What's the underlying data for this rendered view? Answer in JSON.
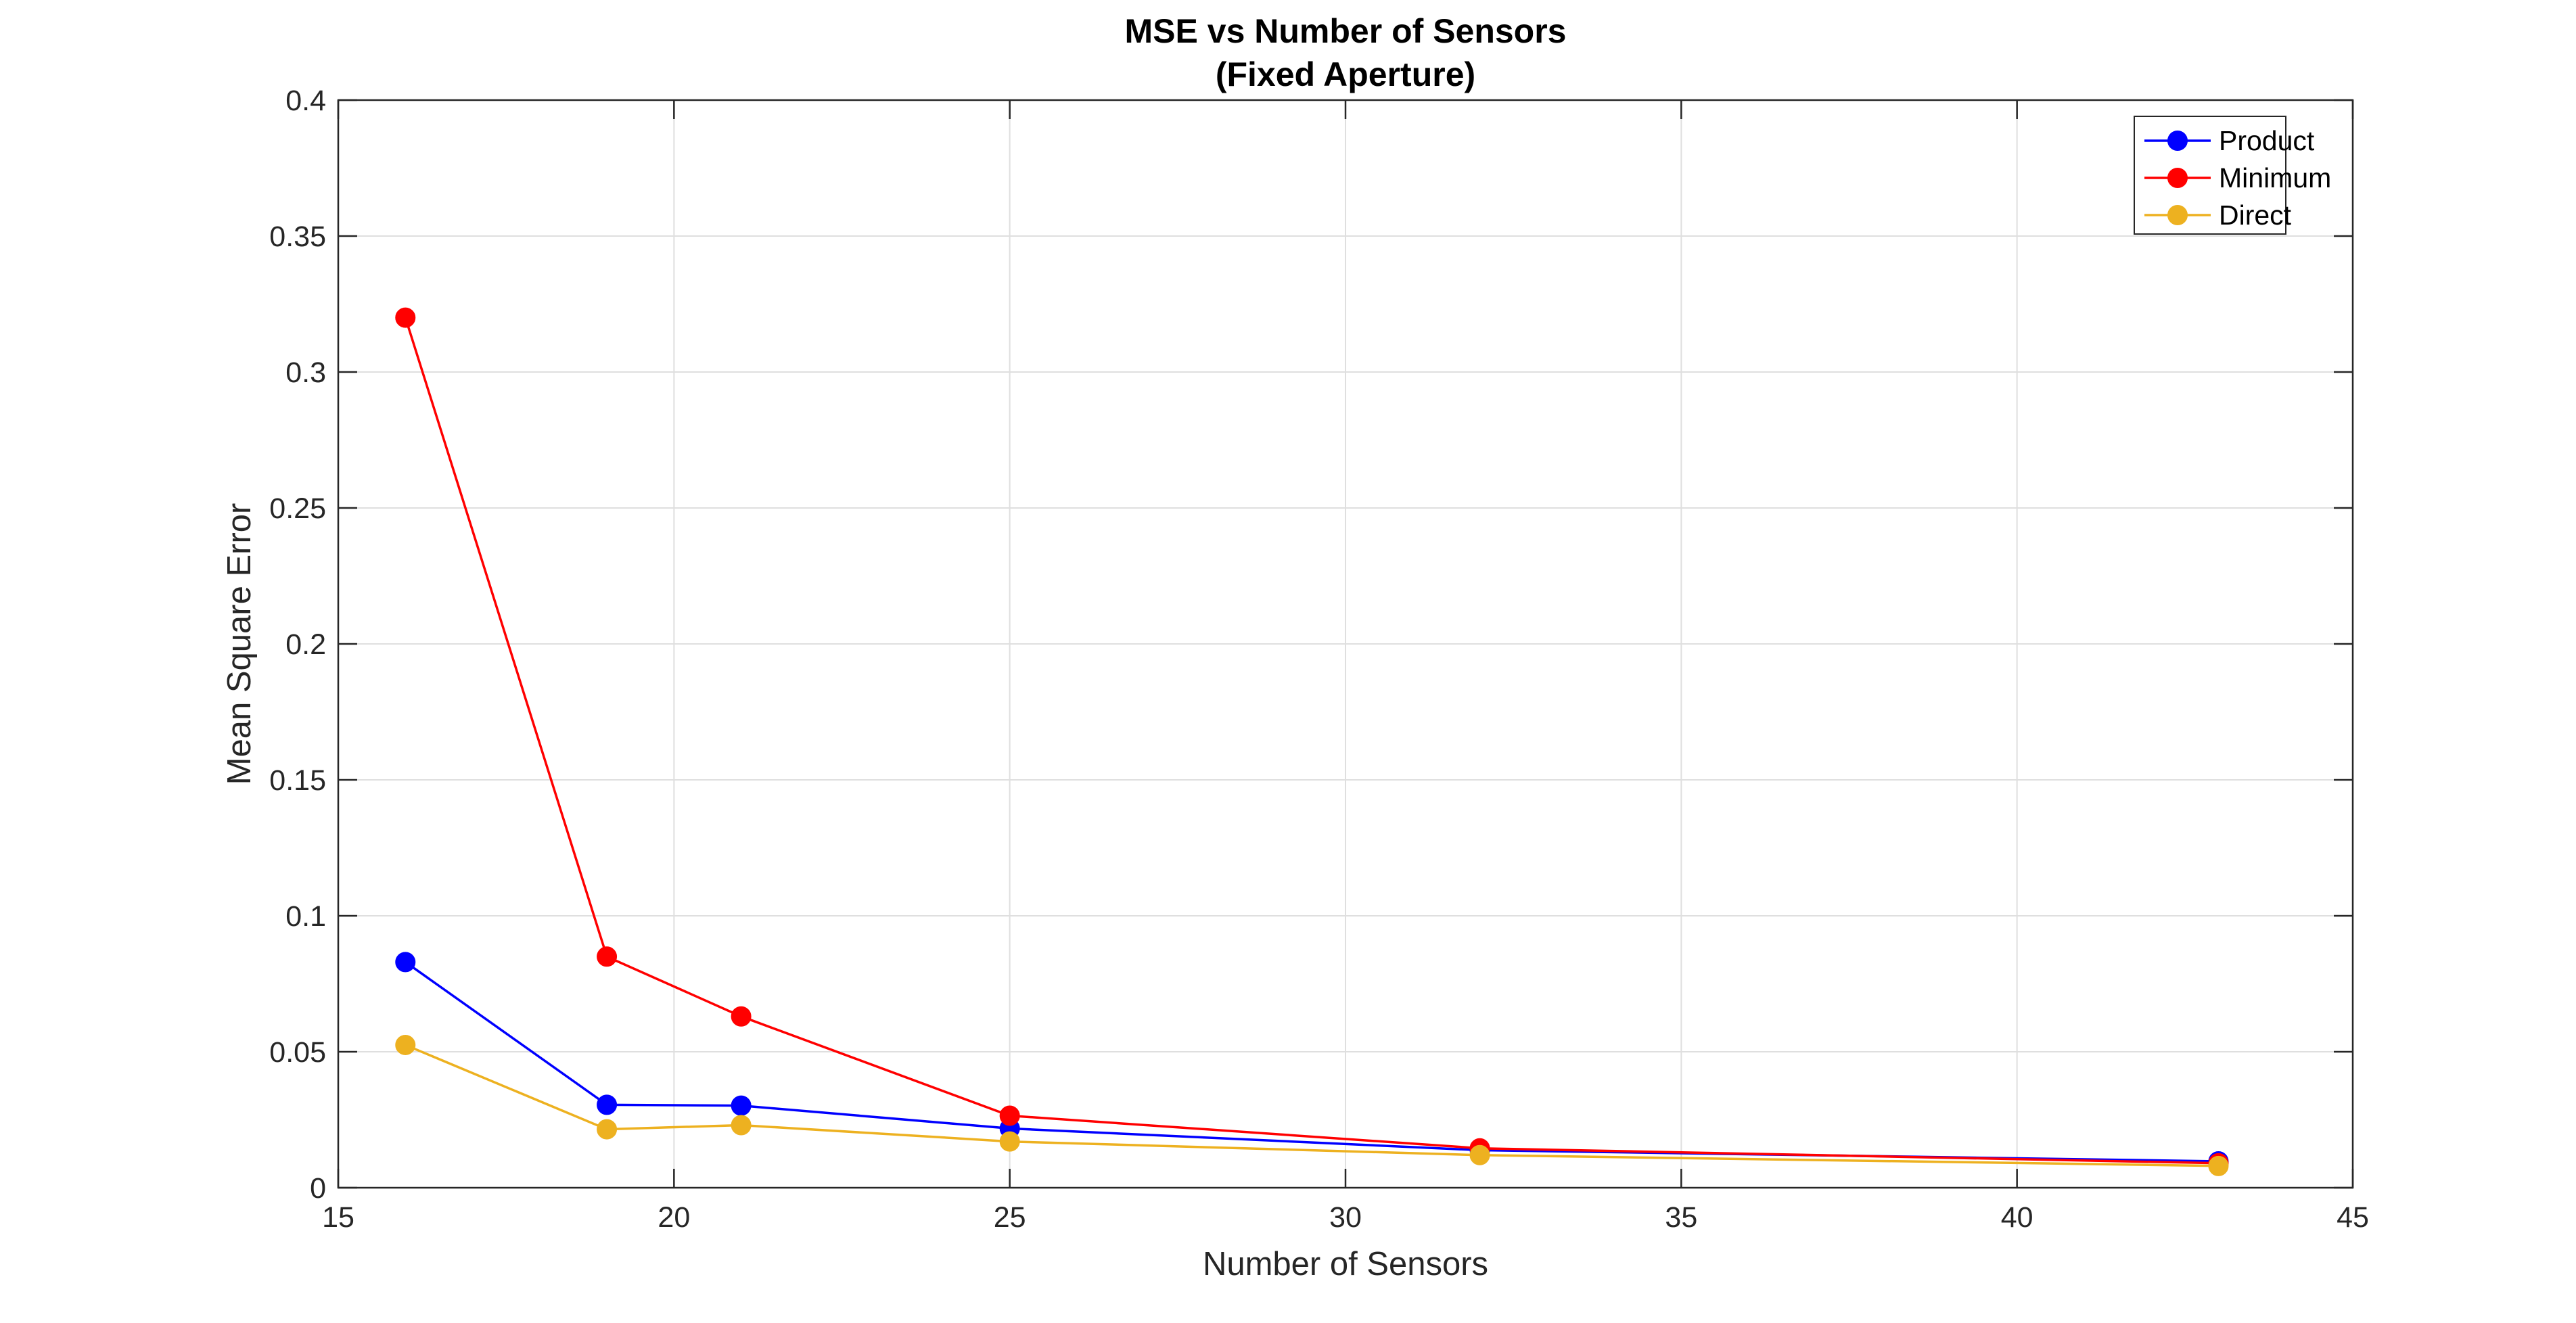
{
  "chart_data": {
    "type": "line",
    "title": "MSE vs Number of Sensors",
    "subtitle": "(Fixed Aperture)",
    "xlabel": "Number of Sensors",
    "ylabel": "Mean Square Error",
    "xlim": [
      15,
      45
    ],
    "ylim": [
      0,
      0.4
    ],
    "xticks": [
      15,
      20,
      25,
      30,
      35,
      40,
      45
    ],
    "xtick_labels": [
      "15",
      "20",
      "25",
      "30",
      "35",
      "40",
      "45"
    ],
    "yticks": [
      0,
      0.05,
      0.1,
      0.15,
      0.2,
      0.25,
      0.3,
      0.35,
      0.4
    ],
    "ytick_labels": [
      "0",
      "0.05",
      "0.1",
      "0.15",
      "0.2",
      "0.25",
      "0.3",
      "0.35",
      "0.4"
    ],
    "grid": true,
    "legend_position": "top-right",
    "x": [
      16,
      19,
      21,
      25,
      32,
      43
    ],
    "series": [
      {
        "name": "Product",
        "color": "#0000ff",
        "values": [
          0.083,
          0.0305,
          0.0302,
          0.0218,
          0.0138,
          0.0097
        ]
      },
      {
        "name": "Minimum",
        "color": "#ff0000",
        "values": [
          0.32,
          0.085,
          0.063,
          0.0265,
          0.0145,
          0.009
        ]
      },
      {
        "name": "Direct",
        "color": "#edb120",
        "values": [
          0.0525,
          0.0215,
          0.023,
          0.017,
          0.012,
          0.008
        ]
      }
    ]
  }
}
